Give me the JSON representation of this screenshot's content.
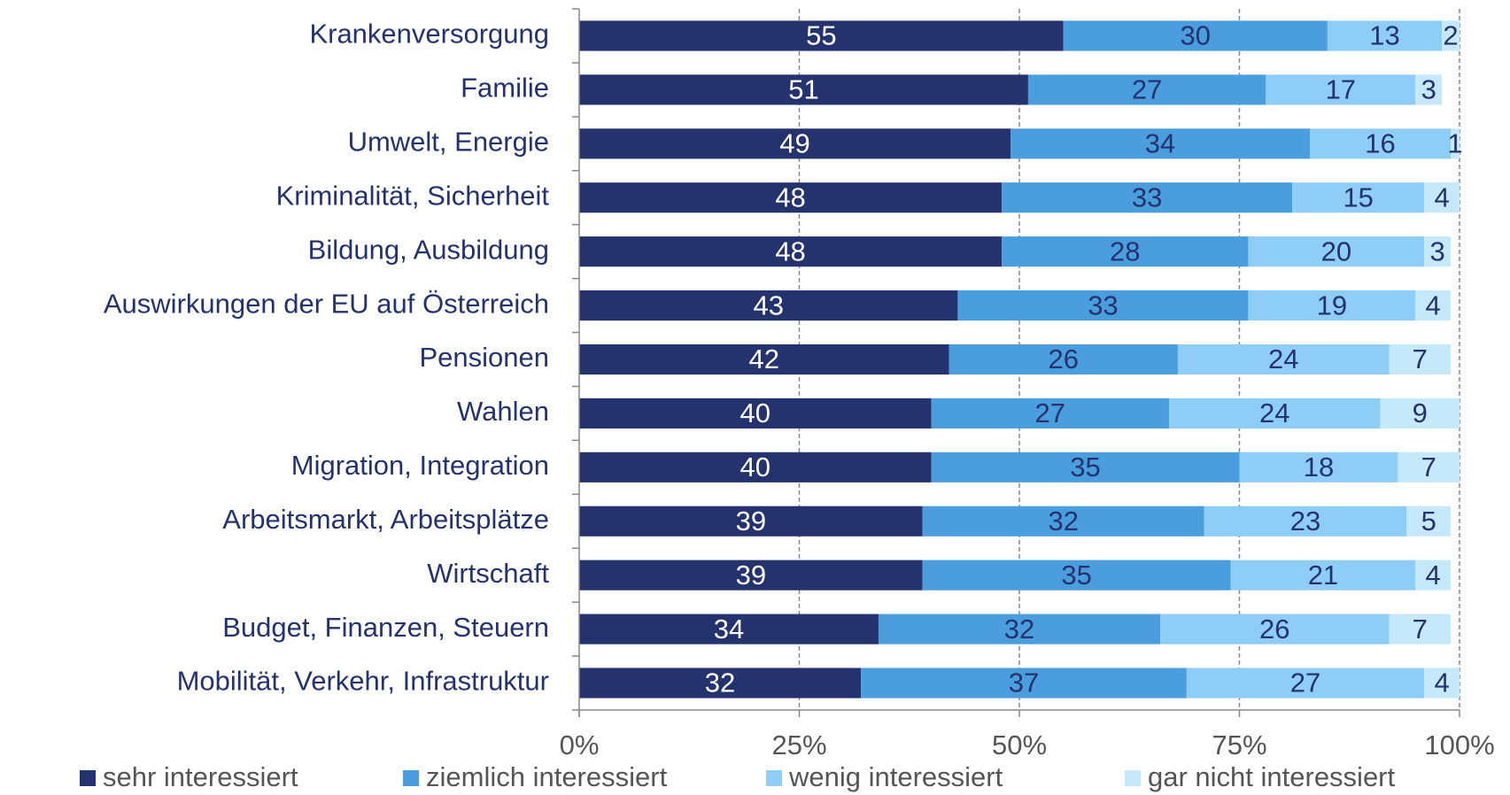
{
  "chart_data": {
    "type": "stacked-bar-horizontal",
    "categories": [
      "Krankenversorgung",
      "Familie",
      "Umwelt, Energie",
      "Kriminalität, Sicherheit",
      "Bildung, Ausbildung",
      "Auswirkungen der EU auf Österreich",
      "Pensionen",
      "Wahlen",
      "Migration, Integration",
      "Arbeitsmarkt, Arbeitsplätze",
      "Wirtschaft",
      "Budget, Finanzen, Steuern",
      "Mobilität, Verkehr, Infrastruktur"
    ],
    "series": [
      {
        "name": "sehr interessiert",
        "color": "#24336e",
        "label_color": "#ffffff",
        "values": [
          55,
          51,
          49,
          48,
          48,
          43,
          42,
          40,
          40,
          39,
          39,
          34,
          32
        ]
      },
      {
        "name": "ziemlich interessiert",
        "color": "#4a9ede",
        "label_color": "#24336e",
        "values": [
          30,
          27,
          34,
          33,
          28,
          33,
          26,
          27,
          35,
          32,
          35,
          32,
          37
        ]
      },
      {
        "name": "wenig interessiert",
        "color": "#8ecdf5",
        "label_color": "#24336e",
        "values": [
          13,
          17,
          16,
          15,
          20,
          19,
          24,
          24,
          18,
          23,
          21,
          26,
          27
        ]
      },
      {
        "name": "gar nicht interessiert",
        "color": "#c5e8fa",
        "label_color": "#24336e",
        "values": [
          2,
          3,
          1,
          4,
          3,
          4,
          7,
          9,
          7,
          5,
          4,
          7,
          4
        ]
      }
    ],
    "xlim": [
      0,
      100
    ],
    "xticks": [
      {
        "value": 0,
        "label": "0%"
      },
      {
        "value": 25,
        "label": "25%"
      },
      {
        "value": 50,
        "label": "50%"
      },
      {
        "value": 75,
        "label": "75%"
      },
      {
        "value": 100,
        "label": "100%"
      }
    ],
    "grid": true,
    "legend": "bottom"
  }
}
